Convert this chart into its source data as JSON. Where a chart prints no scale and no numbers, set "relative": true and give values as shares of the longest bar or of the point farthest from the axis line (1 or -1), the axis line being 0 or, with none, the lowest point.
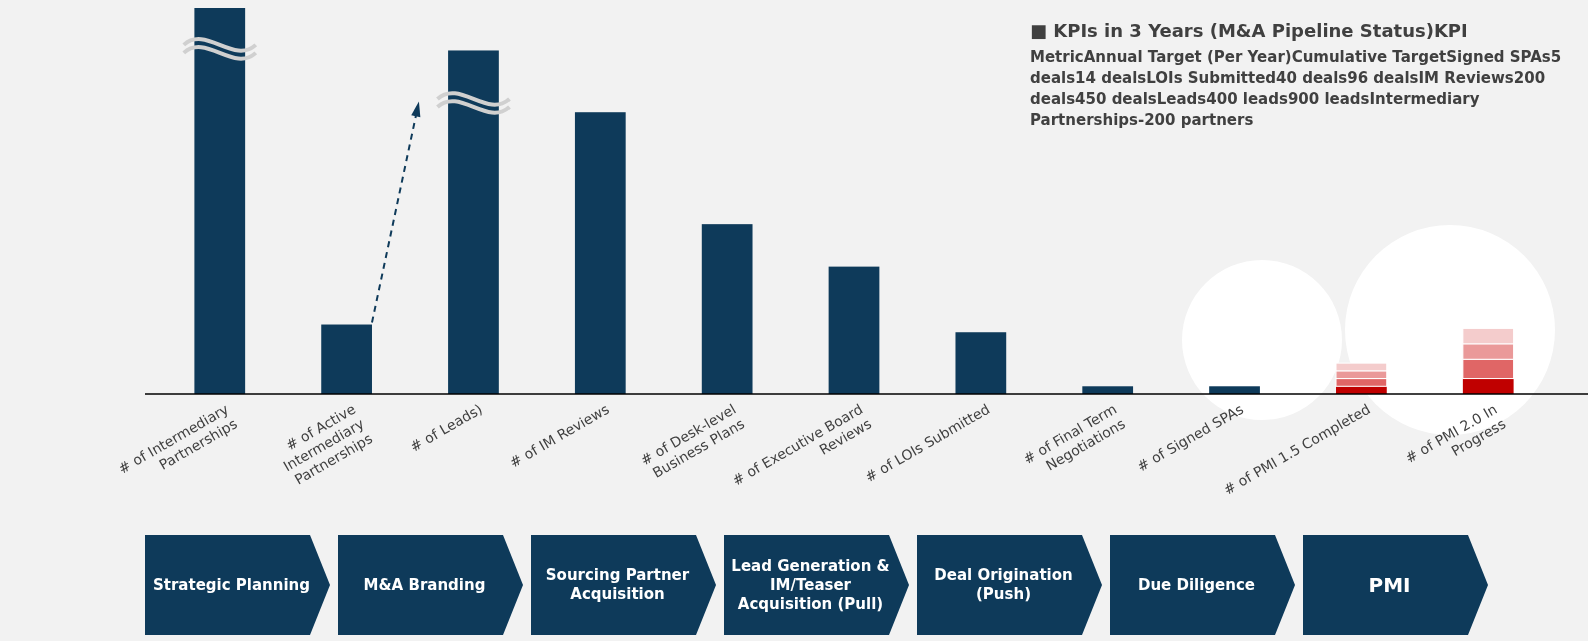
{
  "chart_data": {
    "type": "bar",
    "relative": true,
    "stacked": true,
    "title": "■ KPIs in 3 Years (M&A Pipeline Status)KPI",
    "categories": [
      "# of Intermediary Partnerships",
      "# of Active Intermediary Partnerships",
      "# of Leads)",
      "# of IM Reviews",
      "# of Desk-level Business Plans",
      "# of Executive Board Reviews",
      "# of LOIs Submitted",
      "# of Final Term Negotiations",
      "# of Signed SPAs",
      "# of PMI 1.5 Completed",
      "# of PMI 2.0 In Progress"
    ],
    "series": [
      {
        "colors": [
          "#0e3a5a",
          "#0e3a5a",
          "#0e3a5a",
          "#0e3a5a",
          "#0e3a5a",
          "#0e3a5a",
          "#0e3a5a",
          "#0e3a5a",
          "#0e3a5a",
          "#c00000",
          "#c00000"
        ],
        "values": [
          1,
          0.18,
          0.89,
          0.73,
          0.44,
          0.33,
          0.16,
          0.02,
          0.02,
          0.02,
          0.04
        ]
      },
      {
        "color": "#e06666",
        "values": [
          null,
          null,
          null,
          null,
          null,
          null,
          null,
          null,
          null,
          0.02,
          0.05
        ]
      },
      {
        "color": "#ea9999",
        "values": [
          null,
          null,
          null,
          null,
          null,
          null,
          null,
          null,
          null,
          0.02,
          0.04
        ]
      },
      {
        "color": "#f4cccc",
        "values": [
          null,
          null,
          null,
          null,
          null,
          null,
          null,
          null,
          null,
          0.02,
          0.04
        ]
      }
    ],
    "annotations": [
      "MetricAnnual Target (Per Year)Cumulative TargetSigned SPAs5 deals14 dealsLOIs Submitted40 deals96 dealsIM Reviews200 deals450 dealsLeads400 leads900 leadsIntermediary Partnerships-200 partners",
      "Strategic Planning",
      "M&A Branding",
      "Sourcing Partner Acquisition",
      "Lead Generation & IM/Teaser Acquisition (Pull)",
      "Deal Origination (Push)",
      "Due Diligence",
      "PMI"
    ]
  }
}
